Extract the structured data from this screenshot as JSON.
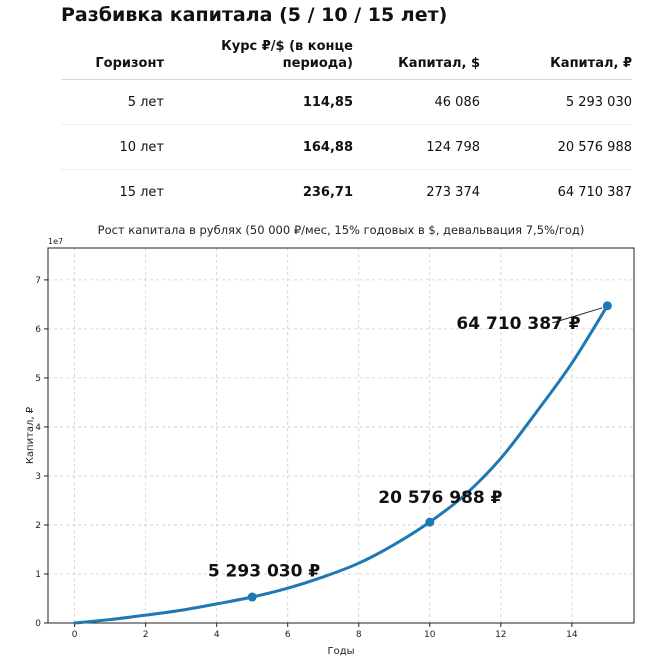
{
  "table": {
    "title": "Разбивка капитала (5 / 10 / 15 лет)",
    "headers": [
      "Горизонт",
      "Курс ₽/$ (в конце\nпериода)",
      "Капитал, $",
      "Капитал, ₽"
    ],
    "rows": [
      [
        "5 лет",
        "114,85",
        "46 086",
        "5 293 030"
      ],
      [
        "10 лет",
        "164,88",
        "124 798",
        "20 576 988"
      ],
      [
        "15 лет",
        "236,71",
        "273 374",
        "64 710 387"
      ]
    ]
  },
  "chart_data": {
    "type": "line",
    "title": "Рост капитала в рублях (50 000 ₽/мес, 15% годовых в $, девальвация 7,5%/год)",
    "xlabel": "Годы",
    "ylabel": "Капитал, ₽",
    "y_offset_label": "1e7",
    "xlim": [
      -0.75,
      15.75
    ],
    "ylim": [
      0,
      7.65
    ],
    "x_ticks": [
      "0",
      "2",
      "4",
      "6",
      "8",
      "10",
      "12",
      "14"
    ],
    "y_ticks": [
      "0",
      "1",
      "2",
      "3",
      "4",
      "5",
      "6",
      "7"
    ],
    "grid": true,
    "line_color": "#1f77b4",
    "series": [
      {
        "x": [
          0,
          1,
          2,
          3,
          4,
          5,
          6,
          7,
          8,
          9,
          10,
          11,
          12,
          13,
          14,
          15
        ],
        "y": [
          0,
          0.07,
          0.16,
          0.26,
          0.39,
          0.53,
          0.71,
          0.94,
          1.22,
          1.6,
          2.06,
          2.62,
          3.36,
          4.3,
          5.3,
          6.47
        ]
      }
    ],
    "markers": [
      {
        "x": 5,
        "y": 0.5293,
        "label": "5 293 030 ₽"
      },
      {
        "x": 10,
        "y": 2.0577,
        "label": "20 576 988 ₽"
      },
      {
        "x": 15,
        "y": 6.471,
        "label": "64 710 387 ₽"
      }
    ]
  }
}
